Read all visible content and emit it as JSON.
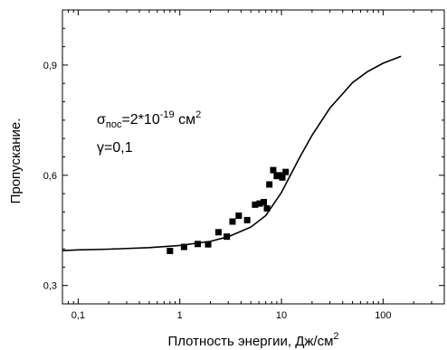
{
  "chart_data": {
    "type": "scatter",
    "title": "",
    "xlabel": "Плотность энергии, Дж/см",
    "xlabel_sup": "2",
    "ylabel": "Пропускание.",
    "xscale": "log",
    "xlim": [
      0.07,
      400
    ],
    "ylim": [
      0.25,
      1.05
    ],
    "x_ticks": [
      0.1,
      1,
      10,
      100
    ],
    "x_tick_labels": [
      "0,1",
      "1",
      "10",
      "100"
    ],
    "y_ticks": [
      0.3,
      0.6,
      0.9
    ],
    "y_tick_labels": [
      "0,3",
      "0,6",
      "0,9"
    ],
    "grid": false,
    "series": [
      {
        "kind": "points",
        "marker": "square",
        "x": [
          0.8,
          1.1,
          1.5,
          1.9,
          2.4,
          2.9,
          3.3,
          3.8,
          4.6,
          5.5,
          6.1,
          6.7,
          7.2,
          7.6,
          8.3,
          9.0,
          9.5,
          10.2,
          11.0
        ],
        "y": [
          0.394,
          0.405,
          0.413,
          0.412,
          0.445,
          0.433,
          0.474,
          0.49,
          0.478,
          0.52,
          0.523,
          0.527,
          0.51,
          0.575,
          0.614,
          0.598,
          0.6,
          0.594,
          0.609
        ]
      },
      {
        "kind": "line",
        "x": [
          0.07,
          0.1,
          0.2,
          0.5,
          1,
          2,
          3,
          5,
          7,
          10,
          15,
          20,
          30,
          50,
          70,
          100,
          150
        ],
        "y": [
          0.395,
          0.397,
          0.399,
          0.403,
          0.409,
          0.42,
          0.433,
          0.459,
          0.49,
          0.553,
          0.647,
          0.709,
          0.783,
          0.852,
          0.882,
          0.905,
          0.924
        ]
      }
    ],
    "annotations": {
      "sigma_symbol": "σ",
      "sigma_subscript": "пос",
      "sigma_value": "=2*10",
      "sigma_exp": "-19",
      "sigma_unit": " см",
      "sigma_unit_sup": "2",
      "gamma": "γ=0,1"
    },
    "colors": {
      "axis": "#000000",
      "points": "#000000",
      "curve": "#000000"
    }
  }
}
